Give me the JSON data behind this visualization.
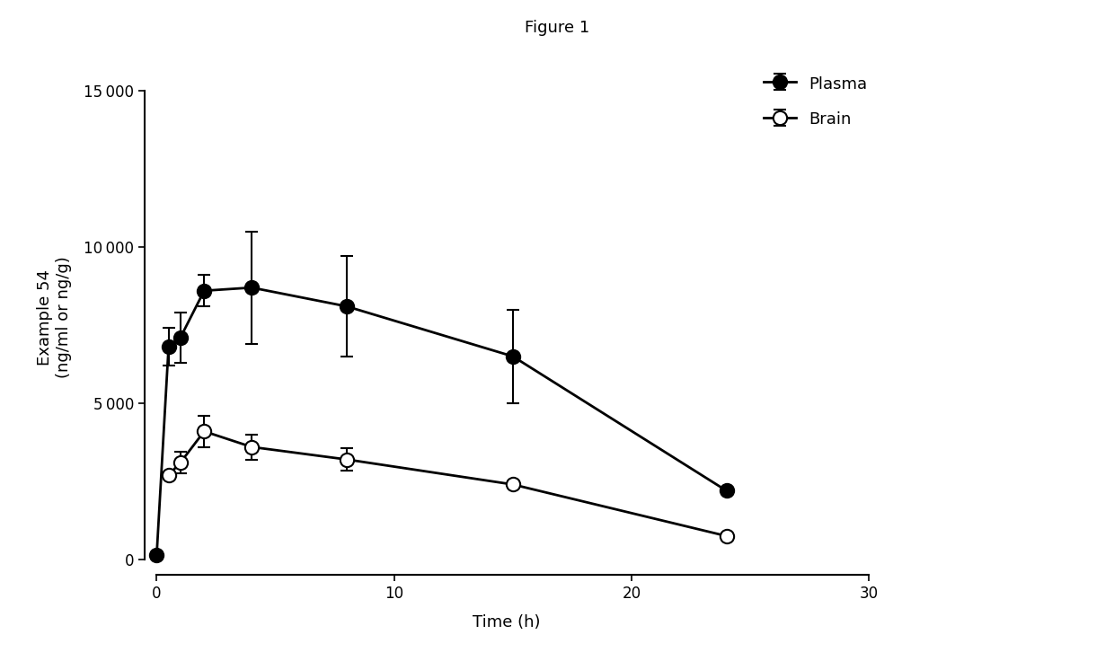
{
  "title": "Figure 1",
  "xlabel": "Time (h)",
  "ylabel": "Example 54\n(ng/ml or ng/g)",
  "xlim": [
    -0.5,
    30
  ],
  "ylim": [
    -500,
    16000
  ],
  "xticks": [
    0,
    10,
    20,
    30
  ],
  "yticks": [
    0,
    5000,
    10000,
    15000
  ],
  "plasma": {
    "x": [
      0,
      0.5,
      1,
      2,
      4,
      8,
      15,
      24
    ],
    "y": [
      150,
      6800,
      7100,
      8600,
      8700,
      8100,
      6500,
      2200
    ],
    "yerr": [
      0,
      600,
      800,
      500,
      1800,
      1600,
      1500,
      0
    ],
    "label": "Plasma",
    "color": "#000000",
    "markerfacecolor": "#000000",
    "markersize": 11,
    "linewidth": 2
  },
  "brain": {
    "x": [
      0.5,
      1,
      2,
      4,
      8,
      15,
      24
    ],
    "y": [
      2700,
      3100,
      4100,
      3600,
      3200,
      2400,
      750
    ],
    "yerr": [
      0,
      350,
      500,
      400,
      350,
      0,
      0
    ],
    "label": "Brain",
    "color": "#000000",
    "markerfacecolor": "#ffffff",
    "markersize": 11,
    "linewidth": 2
  },
  "background_color": "#ffffff",
  "title_fontsize": 13,
  "label_fontsize": 13,
  "tick_fontsize": 12,
  "legend_fontsize": 13
}
